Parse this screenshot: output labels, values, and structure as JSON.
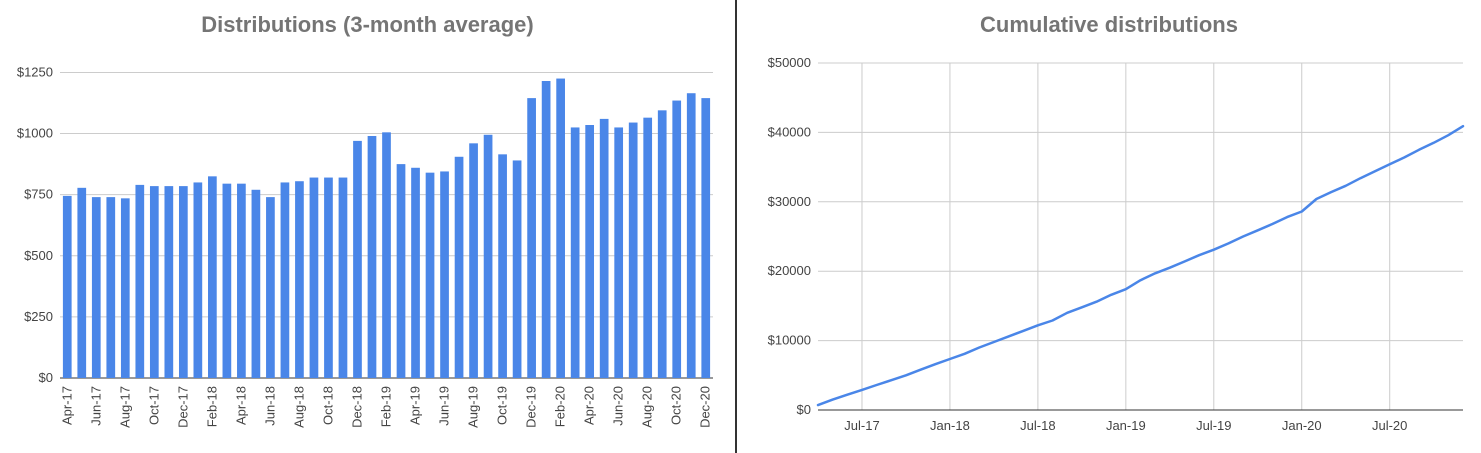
{
  "colors": {
    "series": "#4a86e8",
    "grid": "#cccccc",
    "text": "#444444",
    "title": "#757575"
  },
  "chart_data": [
    {
      "type": "bar",
      "title": "Distributions (3-month average)",
      "xlabel": "",
      "ylabel": "",
      "ylim": [
        0,
        1350
      ],
      "yticks": [
        0,
        250,
        500,
        750,
        1000,
        1250
      ],
      "ytick_labels": [
        "$0",
        "$250",
        "$500",
        "$750",
        "$1000",
        "$1250"
      ],
      "categories": [
        "Apr-17",
        "May-17",
        "Jun-17",
        "Jul-17",
        "Aug-17",
        "Sep-17",
        "Oct-17",
        "Nov-17",
        "Dec-17",
        "Jan-18",
        "Feb-18",
        "Mar-18",
        "Apr-18",
        "May-18",
        "Jun-18",
        "Jul-18",
        "Aug-18",
        "Sep-18",
        "Oct-18",
        "Nov-18",
        "Dec-18",
        "Jan-19",
        "Feb-19",
        "Mar-19",
        "Apr-19",
        "May-19",
        "Jun-19",
        "Jul-19",
        "Aug-19",
        "Sep-19",
        "Oct-19",
        "Nov-19",
        "Dec-19",
        "Jan-20",
        "Feb-20",
        "Mar-20",
        "Apr-20",
        "May-20",
        "Jun-20",
        "Jul-20",
        "Aug-20",
        "Sep-20",
        "Oct-20",
        "Nov-20",
        "Dec-20"
      ],
      "xtick_labels": [
        "Apr-17",
        "Jun-17",
        "Aug-17",
        "Oct-17",
        "Dec-17",
        "Feb-18",
        "Apr-18",
        "Jun-18",
        "Aug-18",
        "Oct-18",
        "Dec-18",
        "Feb-19",
        "Apr-19",
        "Jun-19",
        "Aug-19",
        "Oct-19",
        "Dec-19",
        "Feb-20",
        "Apr-20",
        "Jun-20",
        "Aug-20",
        "Oct-20",
        "Dec-20"
      ],
      "values": [
        745,
        778,
        740,
        740,
        735,
        790,
        785,
        785,
        785,
        800,
        825,
        795,
        795,
        770,
        740,
        800,
        805,
        820,
        820,
        820,
        970,
        990,
        1005,
        875,
        860,
        840,
        845,
        905,
        960,
        995,
        915,
        890,
        1145,
        1215,
        1225,
        1025,
        1035,
        1060,
        1025,
        1045,
        1065,
        1095,
        1135,
        1165,
        1145
      ],
      "grid": true,
      "legend": "none"
    },
    {
      "type": "line",
      "title": "Cumulative distributions",
      "xlabel": "",
      "ylabel": "",
      "ylim": [
        0,
        50000
      ],
      "yticks": [
        0,
        10000,
        20000,
        30000,
        40000,
        50000
      ],
      "ytick_labels": [
        "$0",
        "$10000",
        "$20000",
        "$30000",
        "$40000",
        "$50000"
      ],
      "x": [
        "2017-04",
        "2017-05",
        "2017-06",
        "2017-07",
        "2017-08",
        "2017-09",
        "2017-10",
        "2017-11",
        "2017-12",
        "2018-01",
        "2018-02",
        "2018-03",
        "2018-04",
        "2018-05",
        "2018-06",
        "2018-07",
        "2018-08",
        "2018-09",
        "2018-10",
        "2018-11",
        "2018-12",
        "2019-01",
        "2019-02",
        "2019-03",
        "2019-04",
        "2019-05",
        "2019-06",
        "2019-07",
        "2019-08",
        "2019-09",
        "2019-10",
        "2019-11",
        "2019-12",
        "2020-01",
        "2020-02",
        "2020-03",
        "2020-04",
        "2020-05",
        "2020-06",
        "2020-07",
        "2020-08",
        "2020-09",
        "2020-10",
        "2020-11",
        "2020-12"
      ],
      "values": [
        700,
        1500,
        2200,
        2900,
        3600,
        4300,
        5000,
        5800,
        6600,
        7350,
        8100,
        9000,
        9800,
        10600,
        11400,
        12200,
        12900,
        14000,
        14800,
        15600,
        16600,
        17400,
        18700,
        19700,
        20500,
        21400,
        22300,
        23100,
        24000,
        25000,
        25900,
        26800,
        27800,
        28600,
        30400,
        31400,
        32300,
        33400,
        34400,
        35400,
        36400,
        37500,
        38500,
        39600,
        40900
      ],
      "xtick_labels": [
        "Jul-17",
        "Jan-18",
        "Jul-18",
        "Jan-19",
        "Jul-19",
        "Jan-20",
        "Jul-20"
      ],
      "xtick_index": [
        3,
        9,
        15,
        21,
        27,
        33,
        39
      ],
      "grid": true,
      "legend": "none"
    }
  ]
}
